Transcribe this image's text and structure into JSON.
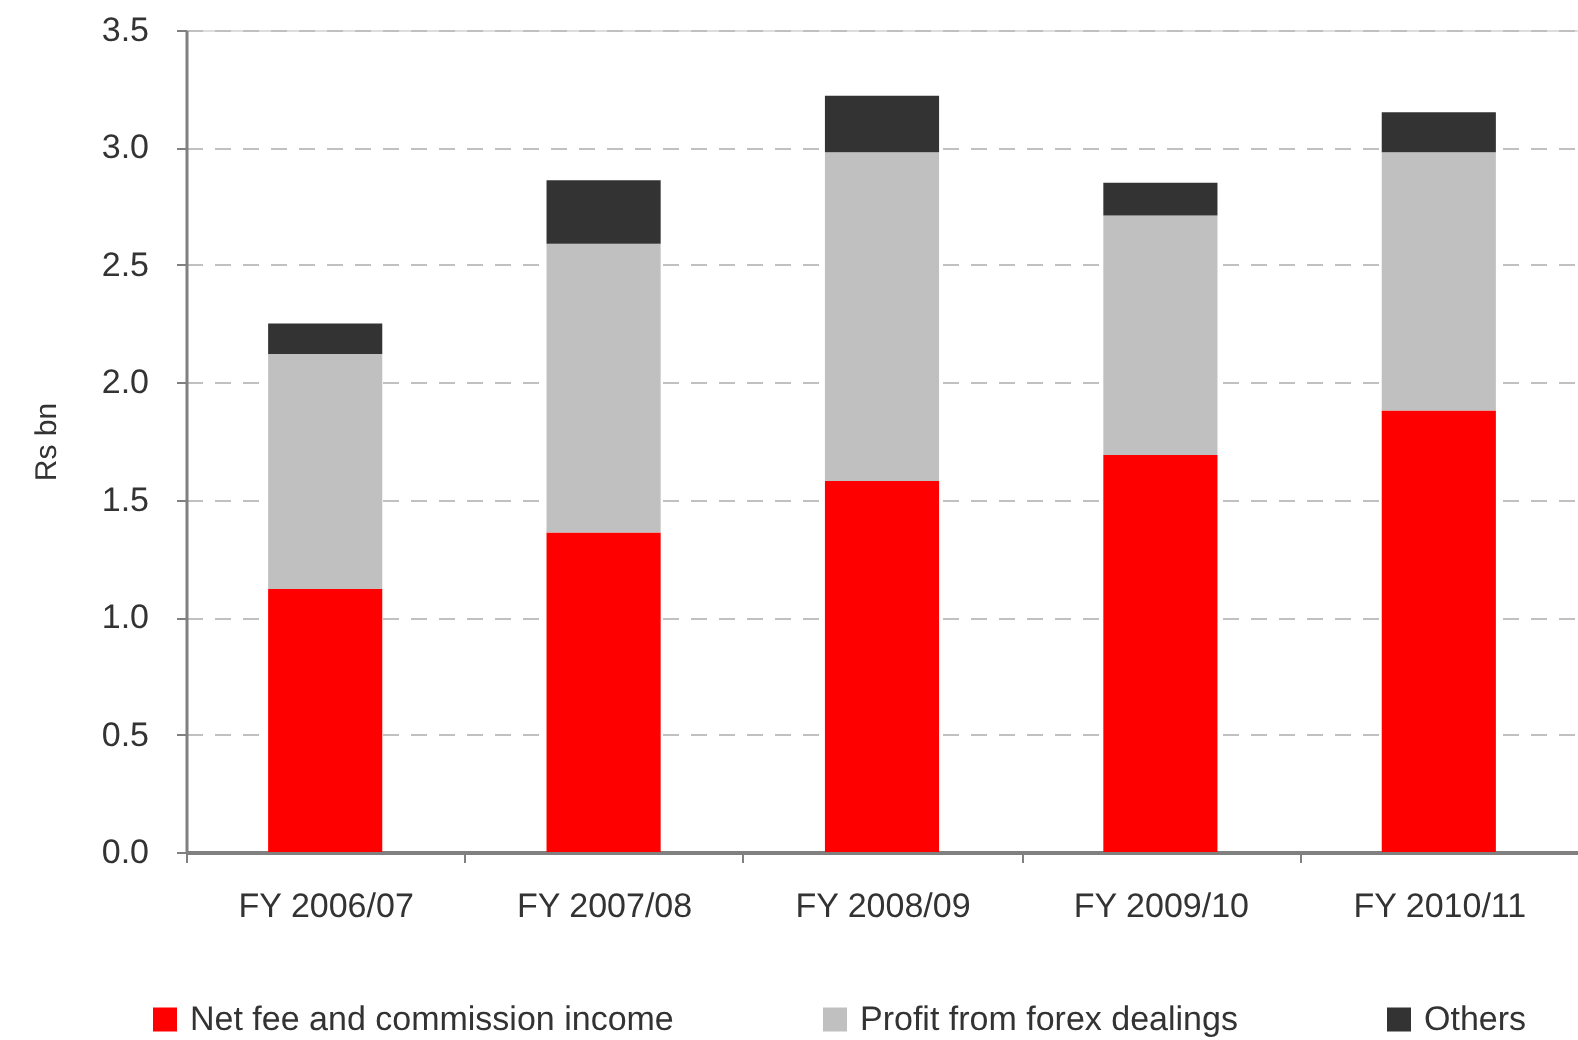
{
  "chart_data": {
    "type": "bar",
    "stacked": true,
    "ylabel": "Rs bn",
    "categories": [
      "FY 2006/07",
      "FY 2007/08",
      "FY 2008/09",
      "FY 2009/10",
      "FY 2010/11"
    ],
    "series": [
      {
        "name": "Net fee and commission income",
        "color": "#ff0000",
        "values": [
          1.12,
          1.36,
          1.58,
          1.69,
          1.88
        ]
      },
      {
        "name": "Profit from forex dealings",
        "color": "#c0c0c0",
        "values": [
          1.0,
          1.23,
          1.4,
          1.02,
          1.1
        ]
      },
      {
        "name": "Others",
        "color": "#333333",
        "values": [
          0.13,
          0.27,
          0.24,
          0.14,
          0.17
        ]
      }
    ],
    "ylim": [
      0,
      3.5
    ],
    "yticks": [
      {
        "value": 0,
        "label": "0.0"
      },
      0.5,
      {
        "value": 1,
        "label": "1.0"
      },
      1.5,
      {
        "value": 2,
        "label": "2.0"
      },
      2.5,
      {
        "value": 3,
        "label": "3.0"
      },
      3.5
    ],
    "grid": "y",
    "legend": "bottom"
  }
}
